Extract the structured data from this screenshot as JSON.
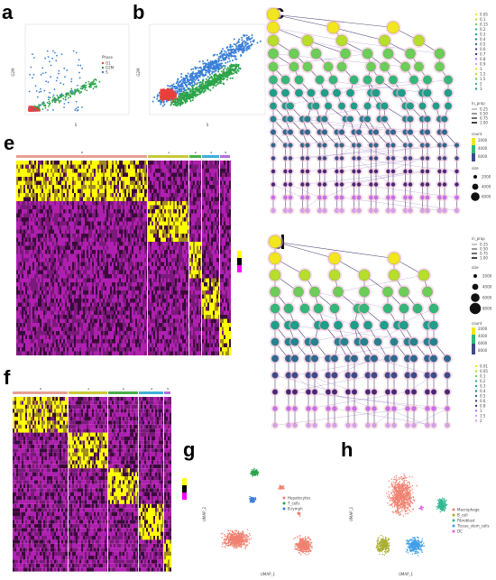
{
  "figure": {
    "panel_labels": [
      "a",
      "b",
      "c",
      "d",
      "e",
      "f",
      "g",
      "h"
    ]
  },
  "chart_data": [
    {
      "id": "a",
      "type": "scatter",
      "title": "",
      "xlabel": "S",
      "ylabel": "G2M",
      "legend_title": "Phase",
      "legend": [
        "G1",
        "G2M",
        "S"
      ],
      "colors": {
        "G1": "#e8403c",
        "G2M": "#2ba34a",
        "S": "#3a7fd8"
      }
    },
    {
      "id": "b",
      "type": "scatter",
      "title": "",
      "xlabel": "S",
      "ylabel": "G2M",
      "colors": {
        "G1": "#e8403c",
        "G2M": "#2ba34a",
        "S": "#3a7fd8"
      }
    },
    {
      "id": "c",
      "type": "clustree",
      "title": "",
      "legend_resolution": [
        "0.05",
        "0.1",
        "0.15",
        "0.2",
        "0.3",
        "0.4",
        "0.5",
        "0.6",
        "0.7",
        "0.8",
        "0.9",
        "1",
        "1.2",
        "1.5",
        "2",
        "3"
      ],
      "legend_in_prop_title": "in_prop",
      "legend_in_prop": [
        "0.25",
        "0.50",
        "0.75",
        "1.00"
      ],
      "legend_count_title": "count",
      "legend_count": [
        "2000",
        "4000",
        "6000"
      ],
      "legend_size_title": "size",
      "legend_size": [
        "2000",
        "4000",
        "6000"
      ]
    },
    {
      "id": "d",
      "type": "clustree",
      "title": "",
      "legend_in_prop_title": "in_prop",
      "legend_in_prop": [
        "0.25",
        "0.50",
        "0.75",
        "1.00"
      ],
      "legend_size_title": "size",
      "legend_size": [
        "2000",
        "4000",
        "6000",
        "8000"
      ],
      "legend_count_title": "count",
      "legend_count": [
        "2000",
        "4000",
        "6000",
        "8000"
      ],
      "legend_resolution": [
        "0.01",
        "0.05",
        "0.1",
        "0.2",
        "0.3",
        "0.4",
        "0.5",
        "0.6",
        "0.8",
        "1",
        "1.5",
        "2"
      ]
    },
    {
      "id": "e",
      "type": "heatmap",
      "title": "",
      "groups": [
        "0",
        "1",
        "2",
        "3",
        "4"
      ],
      "group_colors": [
        "#e8a090",
        "#c8c83a",
        "#4ab04a",
        "#40b0d8",
        "#b070e0"
      ],
      "color_scale": [
        "#ff00ff",
        "#000000",
        "#ffff00"
      ]
    },
    {
      "id": "f",
      "type": "heatmap",
      "title": "",
      "groups": [
        "0",
        "1",
        "2",
        "3",
        "4"
      ],
      "group_colors": [
        "#e8a090",
        "#c8c83a",
        "#4ab04a",
        "#40b0d8",
        "#b070e0"
      ],
      "color_scale": [
        "#ff00ff",
        "#000000",
        "#ffff00"
      ]
    },
    {
      "id": "g",
      "type": "scatter",
      "title": "",
      "xlabel": "UMAP_1",
      "ylabel": "UMAP_2",
      "legend": [
        "Hepatocytes",
        "T_cells",
        "B-lymph"
      ],
      "colors": [
        "#f08070",
        "#2ba34a",
        "#3a7fd8"
      ]
    },
    {
      "id": "h",
      "type": "scatter",
      "title": "",
      "xlabel": "UMAP_1",
      "ylabel": "UMAP_2",
      "legend": [
        "Macrophage",
        "B_cell",
        "Fibroblast",
        "Tissue_stem_cells",
        "DC"
      ],
      "colors": [
        "#f08070",
        "#a8b030",
        "#30b890",
        "#40a0e8",
        "#e060e0"
      ]
    }
  ]
}
